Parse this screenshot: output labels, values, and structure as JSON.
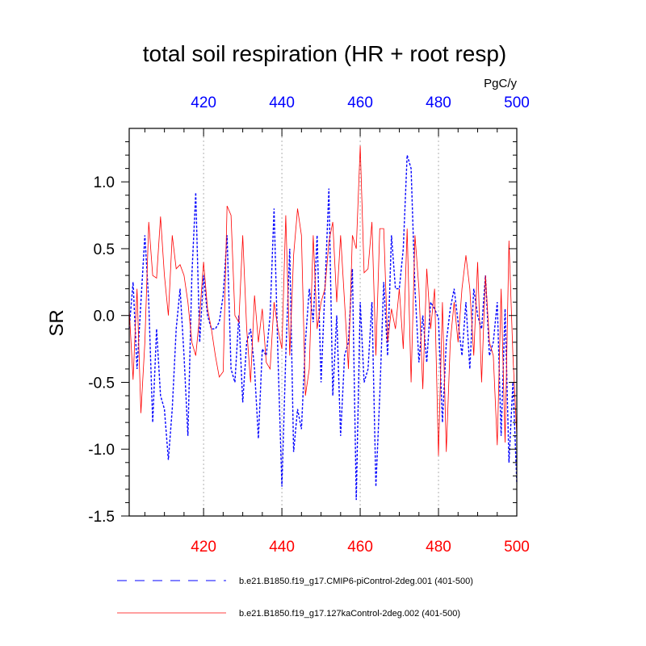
{
  "chart_data": {
    "type": "line",
    "title": "total soil respiration (HR + root resp)",
    "units": "PgC/y",
    "ylabel": "SR",
    "xlim": [
      401,
      500
    ],
    "ylim": [
      -1.5,
      1.4
    ],
    "xticks": [
      420,
      440,
      460,
      480,
      500
    ],
    "xtick_labels": [
      "420",
      "440",
      "460",
      "480",
      "500"
    ],
    "yticks": [
      1.0,
      0.5,
      0.0,
      -0.5,
      -1.0,
      -1.5
    ],
    "ytick_labels": [
      "1.0",
      "0.5",
      "0.0",
      "-0.5",
      "-1.0",
      "-1.5"
    ],
    "grid": "vertical dashed at x ticks",
    "colors": {
      "bottom_axis": "#ff0000",
      "top_axis": "#0000ff",
      "grid": "#b0b0b0"
    },
    "x": [
      401,
      402,
      403,
      404,
      405,
      406,
      407,
      408,
      409,
      410,
      411,
      412,
      413,
      414,
      415,
      416,
      417,
      418,
      419,
      420,
      421,
      422,
      423,
      424,
      425,
      426,
      427,
      428,
      429,
      430,
      431,
      432,
      433,
      434,
      435,
      436,
      437,
      438,
      439,
      440,
      441,
      442,
      443,
      444,
      445,
      446,
      447,
      448,
      449,
      450,
      451,
      452,
      453,
      454,
      455,
      456,
      457,
      458,
      459,
      460,
      461,
      462,
      463,
      464,
      465,
      466,
      467,
      468,
      469,
      470,
      471,
      472,
      473,
      474,
      475,
      476,
      477,
      478,
      479,
      480,
      481,
      482,
      483,
      484,
      485,
      486,
      487,
      488,
      489,
      490,
      491,
      492,
      493,
      494,
      495,
      496,
      497,
      498,
      499,
      500
    ],
    "series": [
      {
        "name": "b.e21.B1850.f19_g17.CMIP6-piControl-2deg.001 (401-500)",
        "color": "#0000ff",
        "style": "dashed",
        "values": [
          -0.1,
          0.25,
          -0.4,
          0.1,
          0.6,
          0.1,
          -0.8,
          -0.1,
          -0.6,
          -0.7,
          -1.08,
          -0.7,
          -0.1,
          0.2,
          -0.3,
          -0.9,
          0.3,
          0.92,
          -0.2,
          0.3,
          0.0,
          -0.1,
          -0.1,
          -0.05,
          0.15,
          0.6,
          -0.4,
          -0.5,
          0.0,
          -0.65,
          -0.2,
          -0.1,
          -0.4,
          -0.92,
          -0.25,
          -0.3,
          0.0,
          0.8,
          -0.3,
          -1.28,
          -0.3,
          0.5,
          -1.02,
          -0.7,
          -0.85,
          -0.2,
          0.2,
          -0.05,
          0.6,
          -0.5,
          0.2,
          0.95,
          -0.6,
          0.0,
          -0.9,
          -0.3,
          -0.2,
          0.35,
          -1.38,
          0.1,
          -0.5,
          -0.4,
          0.1,
          -1.28,
          -0.6,
          0.25,
          -0.3,
          0.6,
          0.2,
          0.2,
          0.5,
          1.2,
          1.1,
          0.2,
          -0.35,
          0.0,
          -0.35,
          0.1,
          0.05,
          -0.02,
          -0.8,
          -0.2,
          0.05,
          0.2,
          -0.05,
          -0.3,
          0.1,
          -0.4,
          0.2,
          0.0,
          -0.1,
          0.3,
          -0.3,
          -0.2,
          0.1,
          -0.9,
          0.05,
          -1.1,
          -0.5,
          -1.25
        ]
      },
      {
        "name": "b.e21.B1850.f19_g17.127kaControl-2deg.002 (401-500)",
        "color": "#ff0000",
        "style": "solid",
        "values": [
          0.05,
          -0.48,
          0.2,
          -0.73,
          -0.2,
          0.7,
          0.3,
          0.28,
          0.74,
          0.3,
          0.0,
          0.6,
          0.35,
          0.38,
          0.3,
          0.1,
          -0.2,
          -0.3,
          0.0,
          0.4,
          0.05,
          -0.1,
          -0.3,
          -0.46,
          -0.42,
          0.82,
          0.75,
          0.0,
          -0.05,
          0.6,
          -0.1,
          -0.5,
          0.15,
          -0.2,
          0.05,
          -0.35,
          -0.4,
          0.1,
          -0.1,
          -0.25,
          0.75,
          -0.3,
          0.45,
          0.8,
          0.6,
          -0.6,
          -0.4,
          0.6,
          -0.1,
          0.1,
          0.2,
          0.55,
          0.7,
          0.1,
          0.6,
          0.1,
          -0.4,
          0.6,
          0.5,
          1.27,
          0.32,
          0.35,
          0.7,
          -0.3,
          0.65,
          0.65,
          -0.2,
          0.05,
          -0.1,
          0.2,
          -0.25,
          0.65,
          -0.5,
          0.6,
          0.2,
          -0.55,
          0.35,
          -0.1,
          0.2,
          -1.05,
          0.1,
          -1.02,
          -0.2,
          0.1,
          -0.2,
          0.2,
          0.45,
          0.2,
          -0.3,
          0.4,
          -0.5,
          0.3,
          -0.2,
          -0.3,
          -0.97,
          0.2,
          -0.95,
          0.56,
          -0.3,
          -0.9
        ]
      }
    ]
  }
}
